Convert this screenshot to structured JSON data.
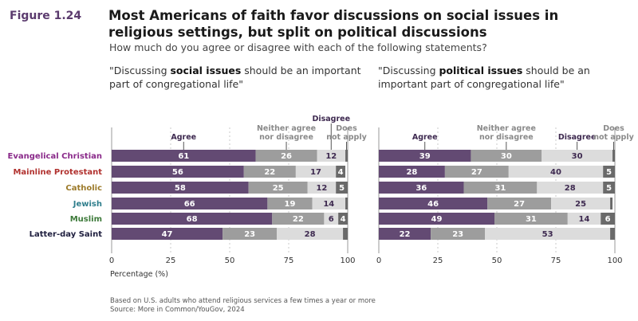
{
  "figure_label": "Figure 1.24",
  "title": "Most Americans of faith favor discussions on social issues in religious settings, but split on political discussions",
  "subtitle": "How much do you agree or disagree with each of the following statements?",
  "panels_head": [
    {
      "pre": "\"Discussing ",
      "bold": "social issues",
      "post": " should be an important part of congregational life\""
    },
    {
      "pre": "\"Discussing ",
      "bold": "political issues",
      "post": " should be an important part of congregational life\""
    }
  ],
  "xlabel": "Percentage (%)",
  "note": "Based on U.S. adults who attend religious services a few times a year or more",
  "source": "Source: More in Common/YouGov, 2024",
  "chart_data": {
    "type": "bar",
    "stacked": true,
    "orientation": "horizontal",
    "categories": [
      "Evangelical Christian",
      "Mainline Protestant",
      "Catholic",
      "Jewish",
      "Muslim",
      "Latter-day Saint"
    ],
    "category_colors": [
      "#8a2a8a",
      "#b1322f",
      "#9c7a2a",
      "#2f7e8c",
      "#3d7a3a",
      "#1e1e3e"
    ],
    "series_names": [
      "Agree",
      "Neither agree nor disagree",
      "Disagree",
      "Does not apply"
    ],
    "series_colors": [
      "#634a73",
      "#9d9d9d",
      "#dcdcdc",
      "#6a6a6a"
    ],
    "series_header_colors": [
      "#3e2a50",
      "#8a8a8a",
      "#3e2a50",
      "#8a8a8a"
    ],
    "xlim": [
      0,
      100
    ],
    "xticks": [
      0,
      25,
      50,
      75,
      100
    ],
    "grid": "dotted at 25, 50, 75",
    "panels": [
      {
        "name": "social issues",
        "values": [
          [
            61,
            26,
            12,
            1
          ],
          [
            56,
            22,
            17,
            4
          ],
          [
            58,
            25,
            12,
            5
          ],
          [
            66,
            19,
            14,
            1
          ],
          [
            68,
            22,
            6,
            4
          ],
          [
            47,
            23,
            28,
            2
          ]
        ],
        "labels": [
          [
            "61",
            "26",
            "12",
            ""
          ],
          [
            "56",
            "22",
            "17",
            "4"
          ],
          [
            "58",
            "25",
            "12",
            "5"
          ],
          [
            "66",
            "19",
            "14",
            ""
          ],
          [
            "68",
            "22",
            "6",
            "4"
          ],
          [
            "47",
            "23",
            "28",
            ""
          ]
        ]
      },
      {
        "name": "political issues",
        "values": [
          [
            39,
            30,
            30,
            1
          ],
          [
            28,
            27,
            40,
            5
          ],
          [
            36,
            31,
            28,
            5
          ],
          [
            46,
            27,
            25,
            1
          ],
          [
            49,
            31,
            14,
            6
          ],
          [
            22,
            23,
            53,
            2
          ]
        ],
        "labels": [
          [
            "39",
            "30",
            "30",
            ""
          ],
          [
            "28",
            "27",
            "40",
            "5"
          ],
          [
            "36",
            "31",
            "28",
            "5"
          ],
          [
            "46",
            "27",
            "25",
            ""
          ],
          [
            "49",
            "31",
            "14",
            "6"
          ],
          [
            "22",
            "23",
            "53",
            ""
          ]
        ]
      }
    ]
  }
}
